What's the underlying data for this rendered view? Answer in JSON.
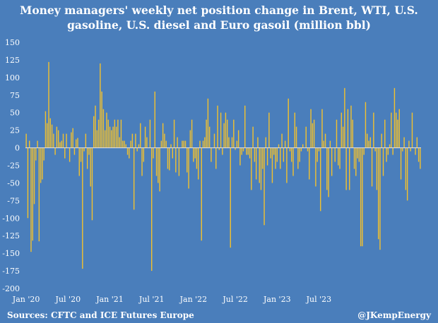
{
  "title_line1": "Money managers' weekly net position change in Brent, WTI, U.S.",
  "title_line2": "gasoline, U.S. diesel and Euro gasoil (million bbl)",
  "source": "Sources: CFTC and ICE Futures Europe",
  "handle": "@JKempEnergy",
  "colors": {
    "background": "#4a7ebb",
    "bar": "#f2c12e",
    "zero_line": "#d9d9d9",
    "text": "#ffffff"
  },
  "chart_data": {
    "type": "bar",
    "title": "Money managers' weekly net position change in Brent, WTI, U.S. gasoline, U.S. diesel and Euro gasoil (million bbl)",
    "ylim": [
      -200,
      150
    ],
    "yticks": [
      150,
      125,
      100,
      75,
      50,
      25,
      0,
      -25,
      -50,
      -75,
      -100,
      -125,
      -150,
      -175,
      -200
    ],
    "xlabels": [
      "Jan '20",
      "Jul '20",
      "Jan '21",
      "Jul '21",
      "Jan '22",
      "Jul '22",
      "Jan '23",
      "Jul '23"
    ],
    "xlabel_week_index": [
      0,
      26,
      52,
      78,
      104,
      130,
      156,
      182
    ],
    "grid": false,
    "series": [
      {
        "values": [
          20,
          -100,
          10,
          -148,
          -132,
          -80,
          -18,
          10,
          -133,
          -50,
          -45,
          -18,
          52,
          35,
          122,
          42,
          33,
          20,
          -10,
          30,
          25,
          8,
          10,
          20,
          -15,
          20,
          0,
          -20,
          22,
          28,
          -10,
          12,
          14,
          -40,
          -20,
          -172,
          -5,
          20,
          -30,
          -10,
          -55,
          -103,
          45,
          60,
          25,
          40,
          120,
          80,
          55,
          25,
          50,
          40,
          30,
          25,
          30,
          40,
          30,
          40,
          15,
          40,
          10,
          10,
          5,
          -10,
          -15,
          10,
          20,
          -88,
          20,
          -5,
          5,
          35,
          -40,
          -20,
          30,
          15,
          0,
          40,
          -175,
          -15,
          80,
          -40,
          -50,
          -62,
          10,
          35,
          20,
          10,
          -30,
          -32,
          5,
          -15,
          40,
          -35,
          15,
          -40,
          0,
          10,
          10,
          10,
          -35,
          -58,
          25,
          40,
          -20,
          -15,
          -30,
          -45,
          10,
          -132,
          10,
          15,
          40,
          70,
          30,
          -20,
          0,
          20,
          -30,
          60,
          -3,
          50,
          -10,
          35,
          50,
          40,
          15,
          -142,
          15,
          40,
          -3,
          10,
          25,
          -25,
          -10,
          -5,
          60,
          -10,
          -10,
          -15,
          -60,
          30,
          -20,
          -45,
          15,
          -50,
          -60,
          -30,
          -110,
          15,
          -25,
          50,
          -15,
          -50,
          -10,
          -30,
          -20,
          5,
          -30,
          20,
          -20,
          10,
          -50,
          70,
          -5,
          -20,
          -40,
          50,
          30,
          -30,
          -20,
          -5,
          5,
          0,
          30,
          -5,
          -45,
          55,
          35,
          40,
          -55,
          -20,
          -5,
          -90,
          55,
          10,
          20,
          -60,
          -70,
          10,
          -40,
          0,
          -20,
          40,
          -25,
          -30,
          50,
          30,
          85,
          -60,
          55,
          -60,
          60,
          40,
          -30,
          -40,
          -15,
          -20,
          -140,
          -140,
          -10,
          65,
          20,
          10,
          15,
          -55,
          50,
          -5,
          -60,
          -130,
          -145,
          20,
          -40,
          40,
          -20,
          -10,
          5,
          50,
          -10,
          85,
          50,
          40,
          55,
          -45,
          -5,
          15,
          -60,
          -75,
          10,
          -5,
          50,
          0,
          -10,
          15,
          -20,
          -30
        ]
      }
    ]
  }
}
